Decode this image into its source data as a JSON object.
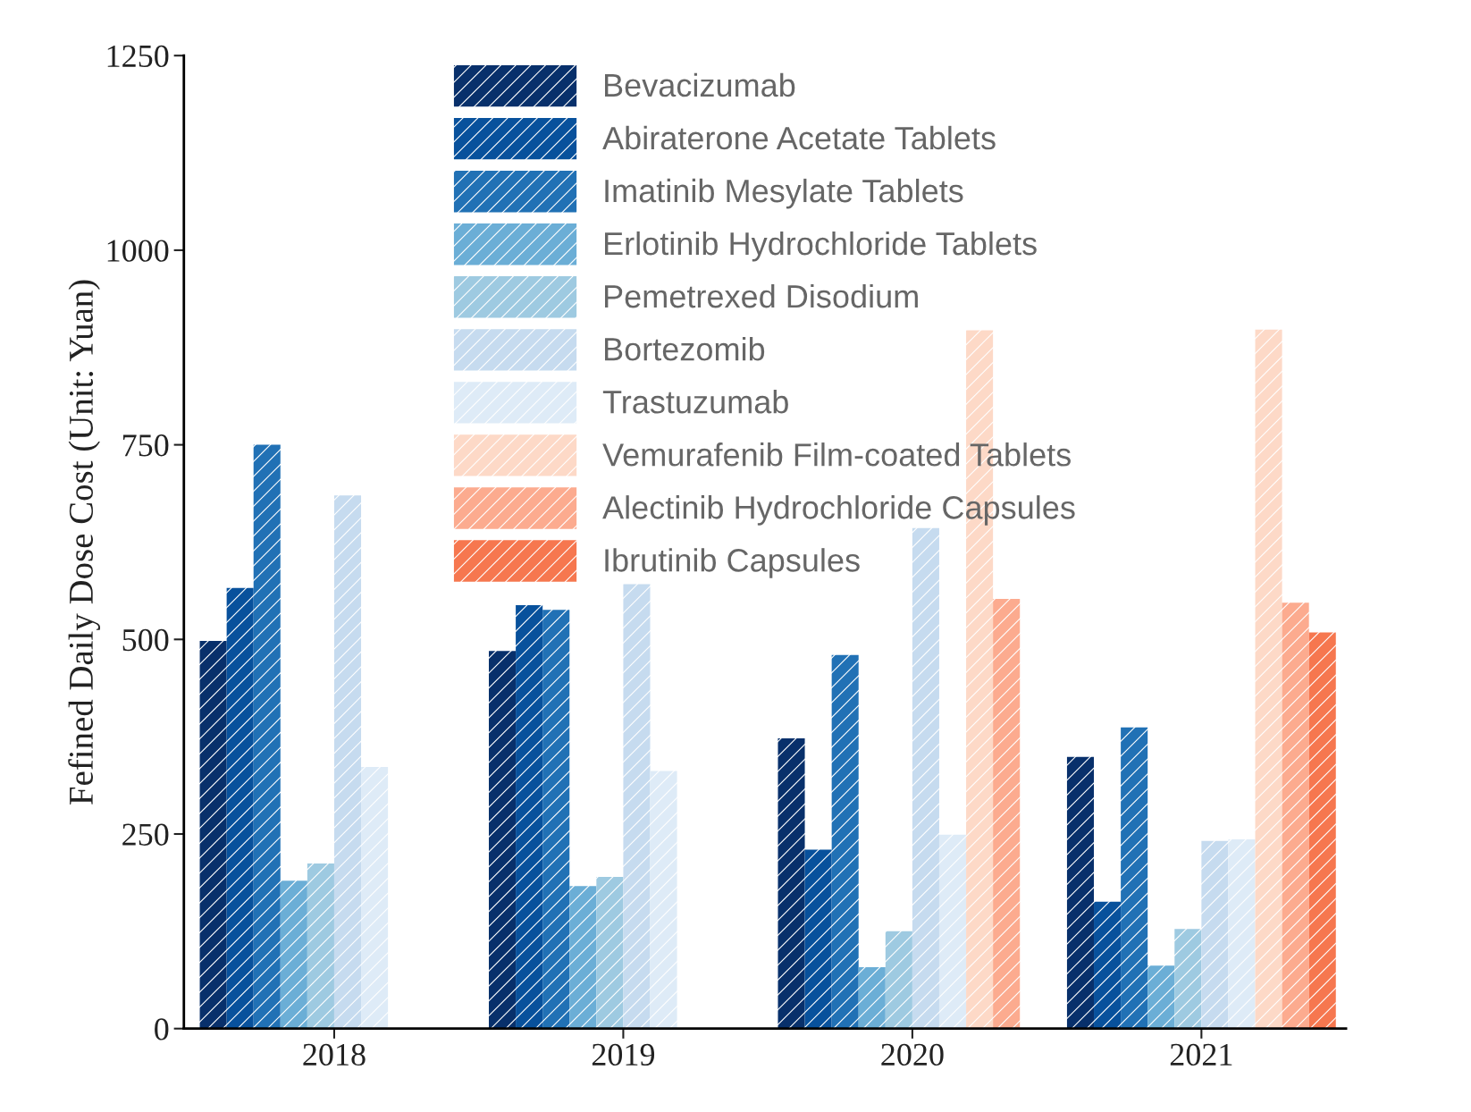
{
  "chart_data": {
    "type": "bar",
    "ylabel": "Fefined Daily Dose Cost (Unit: Yuan)",
    "categories": [
      "2018",
      "2019",
      "2020",
      "2021"
    ],
    "series": [
      {
        "name": "Bevacizumab",
        "color": "#08306b",
        "values": [
          498,
          485,
          373,
          349
        ]
      },
      {
        "name": "Abiraterone Acetate Tablets",
        "color": "#08519c",
        "values": [
          566,
          544,
          230,
          163
        ]
      },
      {
        "name": "Imatinib Mesylate Tablets",
        "color": "#2171b5",
        "values": [
          750,
          538,
          480,
          387
        ]
      },
      {
        "name": "Erlotinib Hydrochloride Tablets",
        "color": "#6baed6",
        "values": [
          190,
          183,
          79,
          81
        ]
      },
      {
        "name": "Pemetrexed Disodium",
        "color": "#9ecae1",
        "values": [
          212,
          195,
          125,
          128
        ]
      },
      {
        "name": "Bortezomib",
        "color": "#c6dbef",
        "values": [
          685,
          571,
          643,
          241
        ]
      },
      {
        "name": "Trastuzumab",
        "color": "#deebf7",
        "values": [
          336,
          331,
          249,
          243
        ]
      },
      {
        "name": "Vemurafenib Film-coated Tablets",
        "color": "#fdd9c7",
        "values": [
          null,
          null,
          897,
          898
        ]
      },
      {
        "name": "Alectinib Hydrochloride Capsules",
        "color": "#fcab8f",
        "values": [
          null,
          null,
          552,
          547
        ]
      },
      {
        "name": "Ibrutinib Capsules",
        "color": "#f6774f",
        "values": [
          null,
          null,
          null,
          509
        ]
      }
    ],
    "ylim": [
      0,
      1250
    ],
    "yticks": [
      0,
      250,
      500,
      750,
      1000,
      1250
    ],
    "grid": false,
    "legend": "top"
  }
}
